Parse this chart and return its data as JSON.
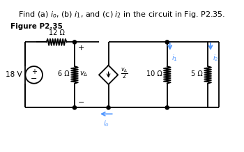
{
  "title": "Find (a) $i_o$, (b) $i_1$, and (c) $i_2$ in the circuit in Fig. P2.35.",
  "fig_label": "Figure P2.35",
  "lc": "#000000",
  "ac": "#5599ff",
  "bg": "#ffffff",
  "vs_label": "18 V",
  "r12_label": "12 Ω",
  "r6_label": "6 Ω",
  "r10_label": "10 Ω",
  "r5_label": "5 Ω",
  "vd_label": "$v_\\Delta$",
  "dep_label": "$\\dfrac{v_\\Delta}{2}$",
  "io_label": "$i_o$",
  "i1_label": "$i_1$",
  "i2_label": "$i_2$",
  "plus": "+",
  "minus": "−"
}
